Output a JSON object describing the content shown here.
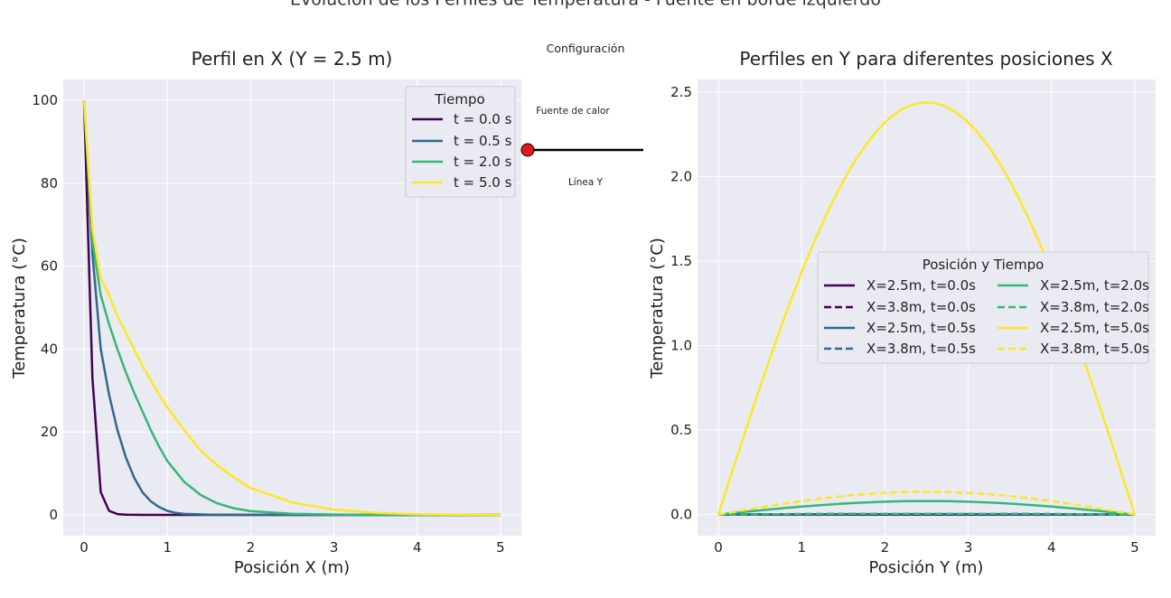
{
  "suptitle": "Evolución de los Perfiles de Temperatura - Fuente en borde izquierdo",
  "middle": {
    "title": "Configuración",
    "source_label": "Fuente de calor",
    "line_label": "Línea Y"
  },
  "colors": {
    "t0": "#440154",
    "t05": "#31688e",
    "t2": "#35b779",
    "t5": "#fde725",
    "panel_bg": "#eaeaf2",
    "source": "#e31a1c"
  },
  "chart_data": [
    {
      "type": "line",
      "title": "Perfil en X (Y = 2.5 m)",
      "xlabel": "Posición X (m)",
      "ylabel": "Temperatura (°C)",
      "xlim": [
        -0.25,
        5.25
      ],
      "ylim": [
        -5,
        105
      ],
      "xticks": [
        0,
        1,
        2,
        3,
        4,
        5
      ],
      "yticks": [
        0,
        20,
        40,
        60,
        80,
        100
      ],
      "grid": true,
      "legend": {
        "title": "Tiempo",
        "placement": "top-right"
      },
      "series": [
        {
          "name": "t = 0.0 s",
          "color": "#440154",
          "dash": "solid",
          "x": [
            0,
            0.1,
            0.2,
            0.3,
            0.4,
            0.5,
            0.7,
            1,
            2,
            3,
            4,
            5
          ],
          "y": [
            100,
            33,
            5.5,
            1,
            0.2,
            0.05,
            0,
            0,
            0,
            0,
            0,
            0
          ]
        },
        {
          "name": "t = 0.5 s",
          "color": "#31688e",
          "dash": "solid",
          "x": [
            0,
            0.1,
            0.2,
            0.3,
            0.4,
            0.5,
            0.6,
            0.7,
            0.8,
            0.9,
            1,
            1.1,
            1.2,
            1.5,
            2,
            3,
            4,
            5
          ],
          "y": [
            100,
            63,
            40,
            29,
            20.5,
            14,
            9,
            5.5,
            3.3,
            1.9,
            1,
            0.5,
            0.25,
            0.05,
            0,
            0,
            0,
            0
          ]
        },
        {
          "name": "t = 2.0 s",
          "color": "#35b779",
          "dash": "solid",
          "x": [
            0,
            0.1,
            0.2,
            0.3,
            0.4,
            0.5,
            0.6,
            0.7,
            0.8,
            0.9,
            1,
            1.2,
            1.4,
            1.6,
            1.8,
            2,
            2.5,
            3,
            3.5,
            4,
            5
          ],
          "y": [
            100,
            66,
            53,
            46,
            40,
            34.5,
            29.5,
            25,
            20.5,
            16.5,
            13,
            8,
            4.8,
            2.8,
            1.6,
            0.9,
            0.3,
            0.1,
            0,
            0,
            0
          ]
        },
        {
          "name": "t = 5.0 s",
          "color": "#fde725",
          "dash": "solid",
          "x": [
            0,
            0.1,
            0.2,
            0.3,
            0.4,
            0.5,
            0.6,
            0.7,
            0.8,
            0.9,
            1,
            1.2,
            1.4,
            1.6,
            1.8,
            2,
            2.5,
            3,
            3.5,
            4,
            4.5,
            5
          ],
          "y": [
            100,
            69,
            57,
            53,
            48,
            44,
            40,
            36,
            32.5,
            29,
            26,
            20.5,
            15.5,
            12,
            9,
            6.5,
            3,
            1.3,
            0.5,
            0.15,
            0.05,
            0
          ]
        }
      ]
    },
    {
      "type": "line",
      "title": "Perfiles en Y para diferentes posiciones X",
      "xlabel": "Posición Y (m)",
      "ylabel": "Temperatura (°C)",
      "xlim": [
        -0.25,
        5.25
      ],
      "ylim": [
        -0.125,
        2.575
      ],
      "xticks": [
        0,
        1,
        2,
        3,
        4,
        5
      ],
      "yticks": [
        0.0,
        0.5,
        1.0,
        1.5,
        2.0,
        2.5
      ],
      "ytick_labels": [
        "0.0",
        "0.5",
        "1.0",
        "1.5",
        "2.0",
        "2.5"
      ],
      "grid": true,
      "legend": {
        "title": "Posición y Tiempo",
        "placement": "center-right",
        "columns": 2
      },
      "series": [
        {
          "name": "X=2.5m, t=0.0s",
          "color": "#440154",
          "dash": "solid",
          "peak": 0
        },
        {
          "name": "X=3.8m, t=0.0s",
          "color": "#440154",
          "dash": "dashed",
          "peak": 0
        },
        {
          "name": "X=2.5m, t=0.5s",
          "color": "#31688e",
          "dash": "solid",
          "peak": 0.003
        },
        {
          "name": "X=3.8m, t=0.5s",
          "color": "#31688e",
          "dash": "dashed",
          "peak": 0.005
        },
        {
          "name": "X=2.5m, t=2.0s",
          "color": "#35b779",
          "dash": "solid",
          "peak": 0.08
        },
        {
          "name": "X=3.8m, t=2.0s",
          "color": "#35b779",
          "dash": "dashed",
          "peak": 0.005
        },
        {
          "name": "X=2.5m, t=5.0s",
          "color": "#fde725",
          "dash": "solid",
          "peak": 2.44
        },
        {
          "name": "X=3.8m, t=5.0s",
          "color": "#fde725",
          "dash": "dashed",
          "peak": 0.135
        }
      ]
    }
  ]
}
